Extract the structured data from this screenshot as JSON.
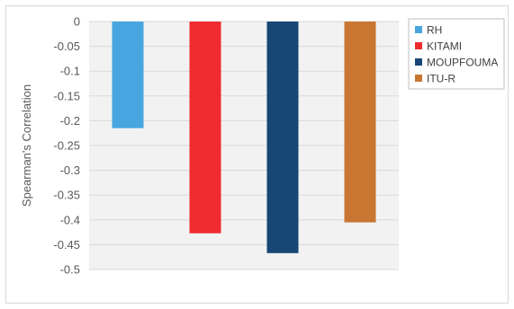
{
  "chart_data": {
    "type": "bar",
    "title": "",
    "xlabel": "",
    "ylabel": "Spearman's Correlation",
    "ylim": [
      -0.5,
      0
    ],
    "yticks": [
      0,
      -0.05,
      -0.1,
      -0.15,
      -0.2,
      -0.25,
      -0.3,
      -0.35,
      -0.4,
      -0.45,
      -0.5
    ],
    "ytick_labels": [
      "0",
      "-0.05",
      "-0.1",
      "-0.15",
      "-0.2",
      "-0.25",
      "-0.3",
      "-0.35",
      "-0.4",
      "-0.45",
      "-0.5"
    ],
    "grid": true,
    "legend_position": "right",
    "series": [
      {
        "name": "RH",
        "value": -0.215,
        "color": "#47a6df"
      },
      {
        "name": "KITAMI",
        "value": -0.427,
        "color": "#ef2b30"
      },
      {
        "name": "MOUPFOUMA",
        "value": -0.467,
        "color": "#184675"
      },
      {
        "name": "ITU-R",
        "value": -0.405,
        "color": "#c97632"
      }
    ],
    "plot_background": "#f2f2f2",
    "gridline_color": "#d9d9d9"
  }
}
